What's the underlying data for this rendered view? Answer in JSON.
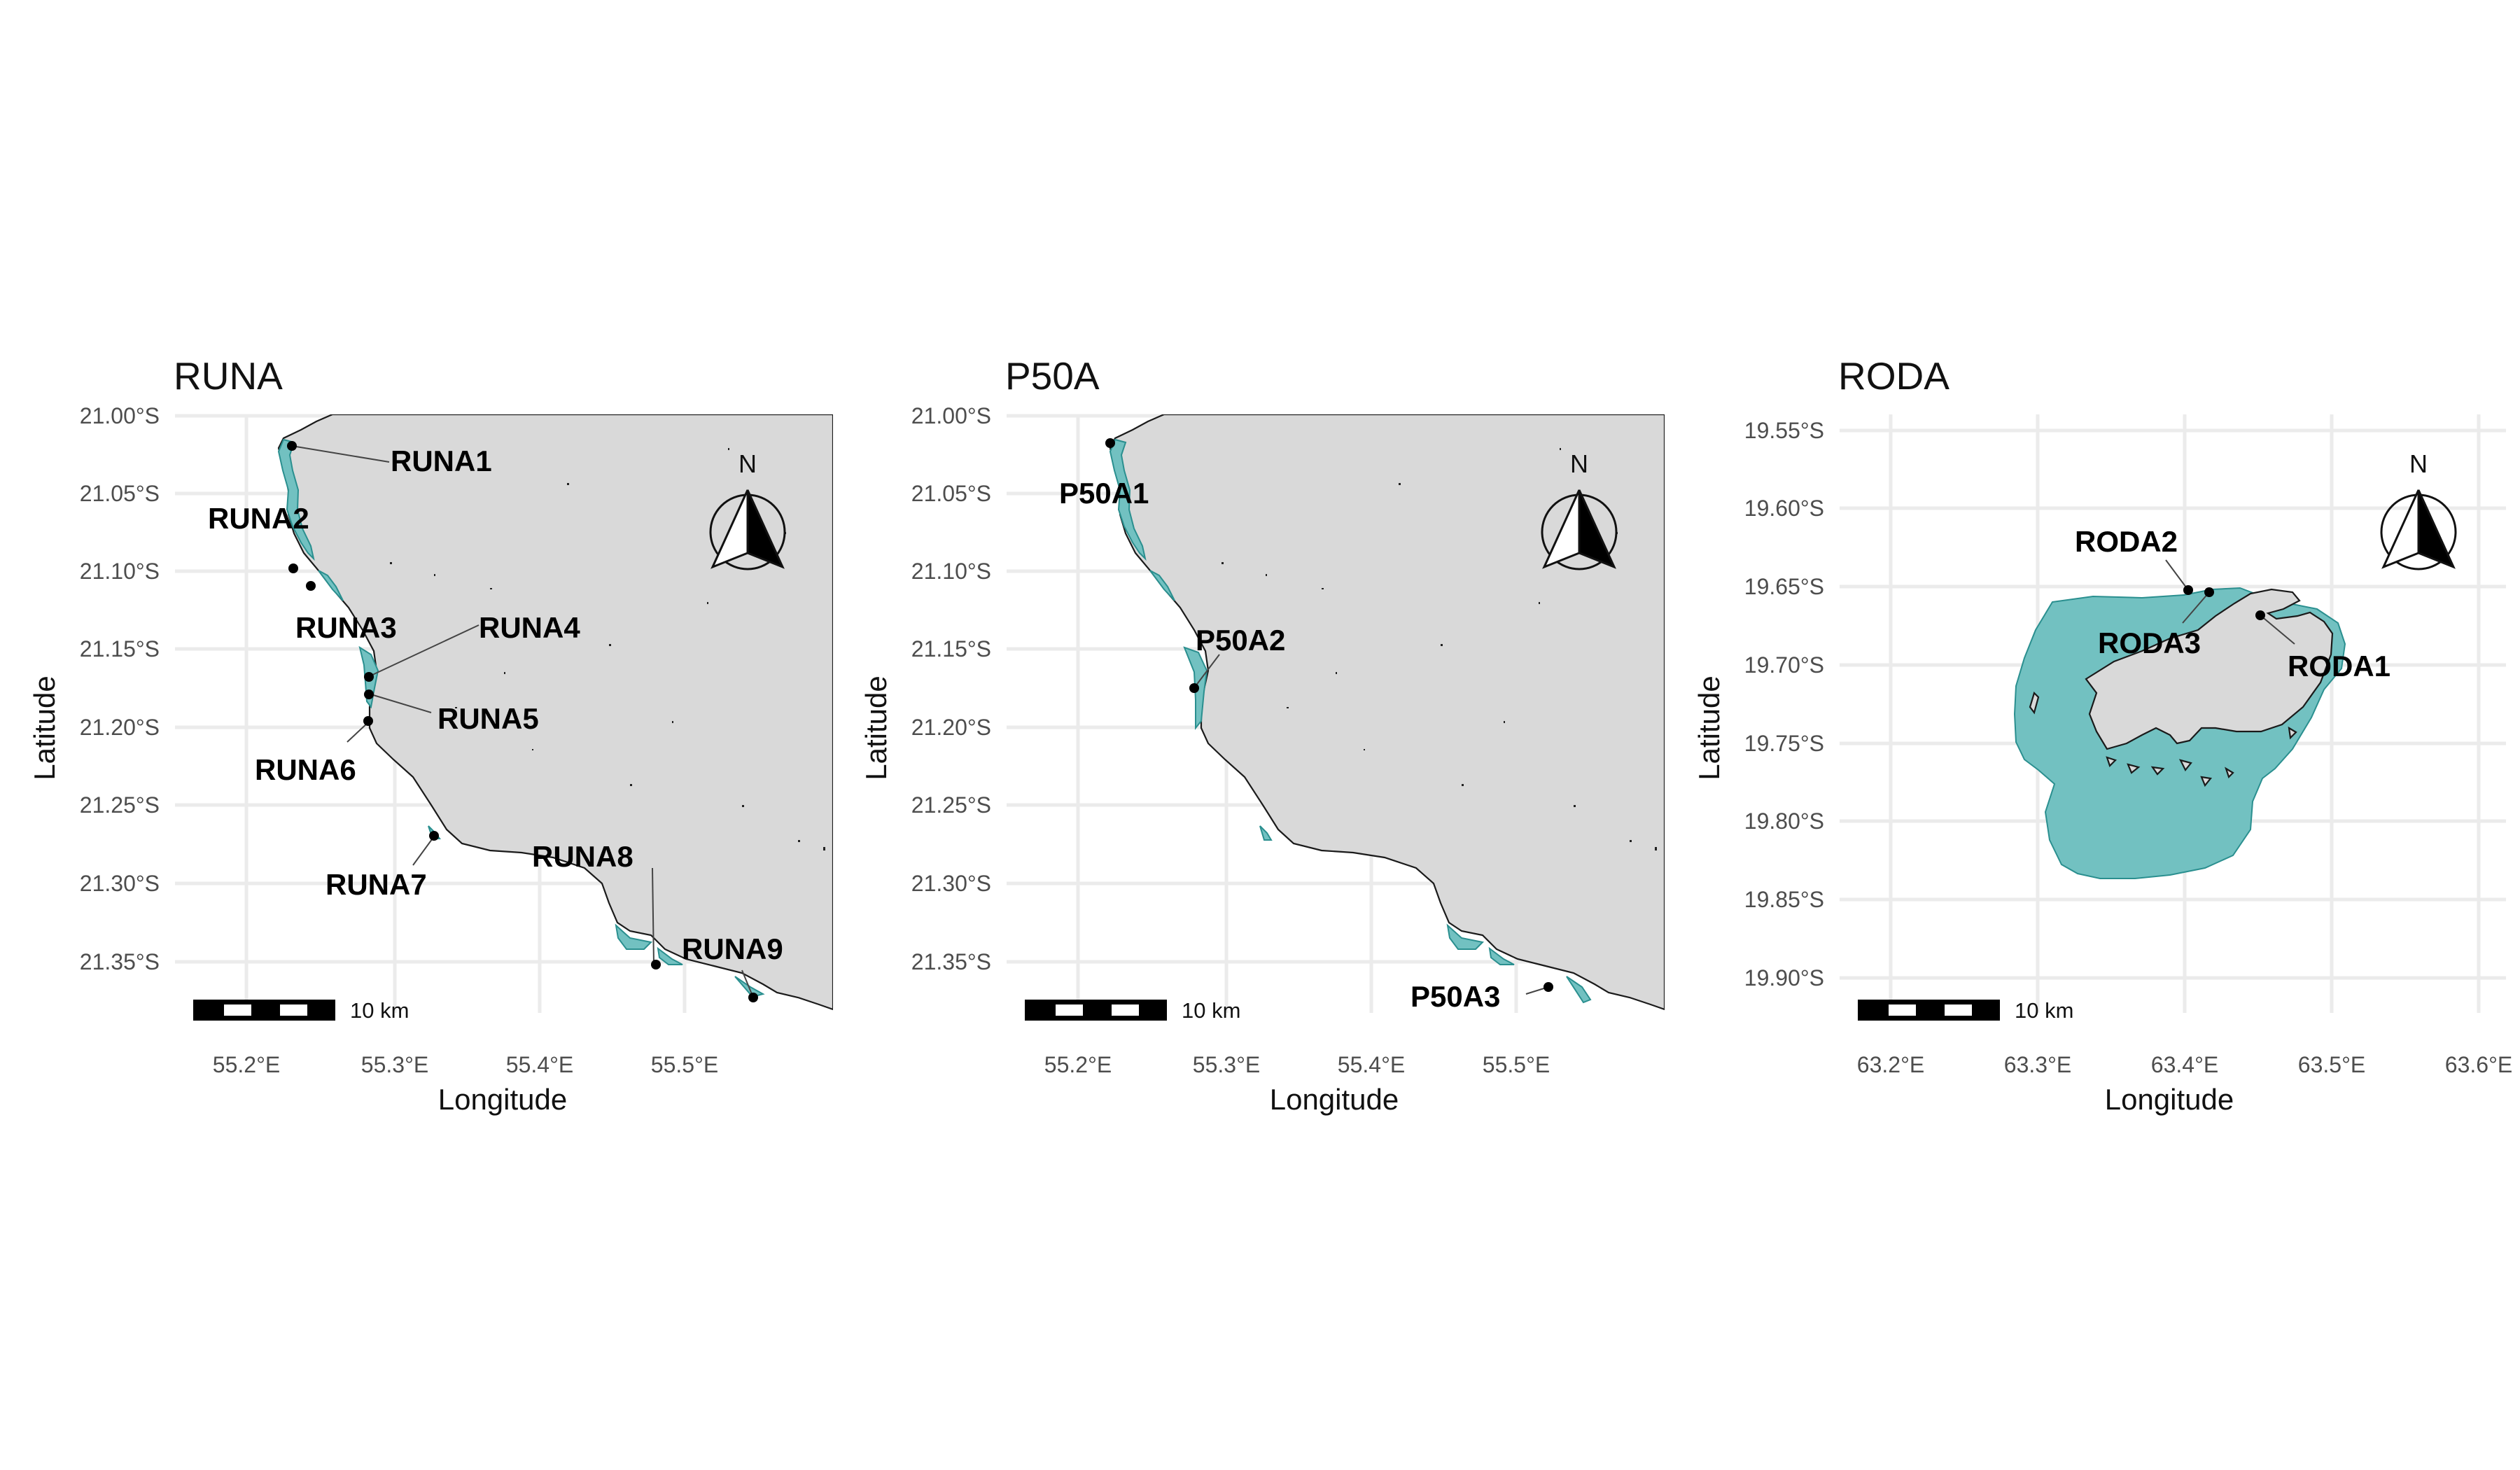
{
  "panels": [
    {
      "id": "runa",
      "title": "RUNA",
      "xlabel": "Longitude",
      "ylabel": "Latitude",
      "x_ticks": [
        "55.2°E",
        "55.3°E",
        "55.4°E",
        "55.5°E"
      ],
      "y_ticks": [
        "21.00°S",
        "21.05°S",
        "21.10°S",
        "21.15°S",
        "21.20°S",
        "21.25°S",
        "21.30°S",
        "21.35°S"
      ],
      "scale_bar_label": "10 km",
      "north_label": "N",
      "sites": [
        "RUNA1",
        "RUNA2",
        "RUNA3",
        "RUNA4",
        "RUNA5",
        "RUNA6",
        "RUNA7",
        "RUNA8",
        "RUNA9"
      ]
    },
    {
      "id": "p50a",
      "title": "P50A",
      "xlabel": "Longitude",
      "ylabel": "Latitude",
      "x_ticks": [
        "55.2°E",
        "55.3°E",
        "55.4°E",
        "55.5°E"
      ],
      "y_ticks": [
        "21.00°S",
        "21.05°S",
        "21.10°S",
        "21.15°S",
        "21.20°S",
        "21.25°S",
        "21.30°S",
        "21.35°S"
      ],
      "scale_bar_label": "10 km",
      "north_label": "N",
      "sites": [
        "P50A1",
        "P50A2",
        "P50A3"
      ]
    },
    {
      "id": "roda",
      "title": "RODA",
      "xlabel": "Longitude",
      "ylabel": "Latitude",
      "x_ticks": [
        "63.2°E",
        "63.3°E",
        "63.4°E",
        "63.5°E",
        "63.6°E"
      ],
      "y_ticks": [
        "19.55°S",
        "19.60°S",
        "19.65°S",
        "19.70°S",
        "19.75°S",
        "19.80°S",
        "19.85°S",
        "19.90°S"
      ],
      "scale_bar_label": "10 km",
      "north_label": "N",
      "sites": [
        "RODA1",
        "RODA2",
        "RODA3"
      ]
    }
  ],
  "colors": {
    "land": "#d9d9d9",
    "reef_habitat": "#72c1c1",
    "coastline": "#1a1a1a",
    "gridline": "#ebebeb",
    "site_marker": "#000000"
  }
}
